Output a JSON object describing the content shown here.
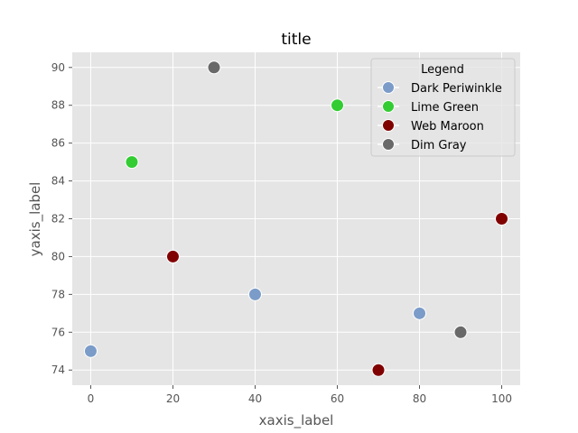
{
  "chart_data": {
    "type": "scatter",
    "title": "title",
    "xlabel": "xaxis_label",
    "ylabel": "yaxis_label",
    "xlim": [
      -4.5,
      104.5
    ],
    "ylim": [
      73.2,
      90.8
    ],
    "xticks": [
      0,
      20,
      40,
      60,
      80,
      100
    ],
    "yticks": [
      74,
      76,
      78,
      80,
      82,
      84,
      86,
      88,
      90
    ],
    "grid": true,
    "legend": {
      "title": "Legend",
      "placement": "top-right"
    },
    "series": [
      {
        "name": "Dark Periwinkle",
        "color": "#7b9cc8",
        "points": [
          [
            0,
            75
          ],
          [
            40,
            78
          ],
          [
            80,
            77
          ]
        ]
      },
      {
        "name": "Lime Green",
        "color": "#33cc33",
        "points": [
          [
            10,
            85
          ],
          [
            60,
            88
          ]
        ]
      },
      {
        "name": "Web Maroon",
        "color": "#800000",
        "points": [
          [
            20,
            80
          ],
          [
            70,
            74
          ],
          [
            100,
            82
          ]
        ]
      },
      {
        "name": "Dim Gray",
        "color": "#696969",
        "points": [
          [
            30,
            90
          ],
          [
            90,
            76
          ]
        ]
      }
    ]
  }
}
